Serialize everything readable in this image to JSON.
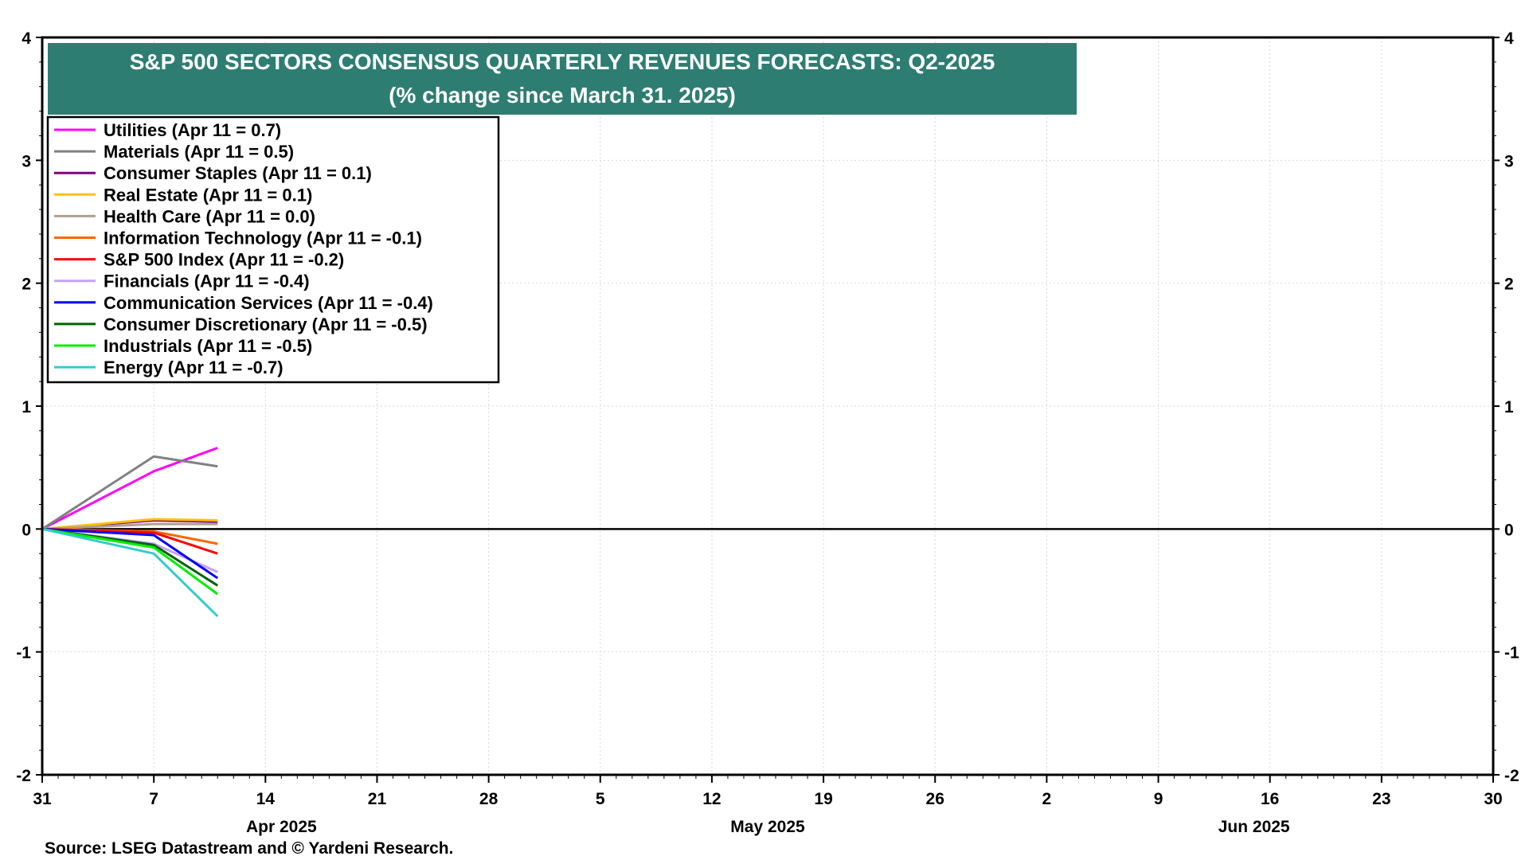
{
  "chart_data": {
    "type": "line",
    "title": "S&P 500 SECTORS CONSENSUS QUARTERLY REVENUES FORECASTS: Q2-2025",
    "subtitle": "(% change since March 31. 2025)",
    "xlabel": "",
    "ylabel": "",
    "ylim": [
      -2,
      4
    ],
    "yticks": [
      "4",
      "3",
      "2",
      "1",
      "0",
      "-1",
      "-2"
    ],
    "x_tick_labels": [
      "31",
      "7",
      "14",
      "21",
      "28",
      "5",
      "12",
      "19",
      "26",
      "2",
      "9",
      "16",
      "23",
      "30"
    ],
    "month_labels": [
      "Apr 2025",
      "May 2025",
      "Jun 2025"
    ],
    "x": [
      "2025-03-31",
      "2025-04-07",
      "2025-04-11"
    ],
    "grid": true,
    "legend_position": "top-left",
    "series": [
      {
        "name": "Utilities (Apr 11 = 0.7)",
        "color": "#ff00ff",
        "values": [
          0,
          0.47,
          0.66
        ]
      },
      {
        "name": "Materials (Apr 11 = 0.5)",
        "color": "#808080",
        "values": [
          0,
          0.59,
          0.51
        ]
      },
      {
        "name": "Consumer Staples (Apr 11 = 0.1)",
        "color": "#800080",
        "values": [
          0,
          0.07,
          0.06
        ]
      },
      {
        "name": "Real Estate (Apr 11 = 0.1)",
        "color": "#ffc000",
        "values": [
          0,
          0.08,
          0.07
        ]
      },
      {
        "name": "Health Care (Apr 11 = 0.0)",
        "color": "#b0a090",
        "values": [
          0,
          0.04,
          0.04
        ]
      },
      {
        "name": "Information Technology (Apr 11 = -0.1)",
        "color": "#ff6600",
        "values": [
          0,
          -0.02,
          -0.12
        ]
      },
      {
        "name": "S&P 500 Index (Apr 11 = -0.2)",
        "color": "#ff0000",
        "values": [
          0,
          -0.03,
          -0.2
        ]
      },
      {
        "name": "Financials (Apr 11 = -0.4)",
        "color": "#c8a0ff",
        "values": [
          0,
          -0.12,
          -0.35
        ]
      },
      {
        "name": "Communication Services (Apr 11 = -0.4)",
        "color": "#0000ff",
        "values": [
          0,
          -0.05,
          -0.4
        ]
      },
      {
        "name": "Consumer Discretionary (Apr 11 = -0.5)",
        "color": "#006400",
        "values": [
          0,
          -0.13,
          -0.46
        ]
      },
      {
        "name": "Industrials (Apr 11 = -0.5)",
        "color": "#00ee00",
        "values": [
          0,
          -0.15,
          -0.53
        ]
      },
      {
        "name": "Energy (Apr 11 = -0.7)",
        "color": "#33cccc",
        "values": [
          0,
          -0.2,
          -0.71
        ]
      }
    ],
    "source": "Source: LSEG Datastream and © Yardeni Research.",
    "title_bg_color": "#2e7d72"
  }
}
